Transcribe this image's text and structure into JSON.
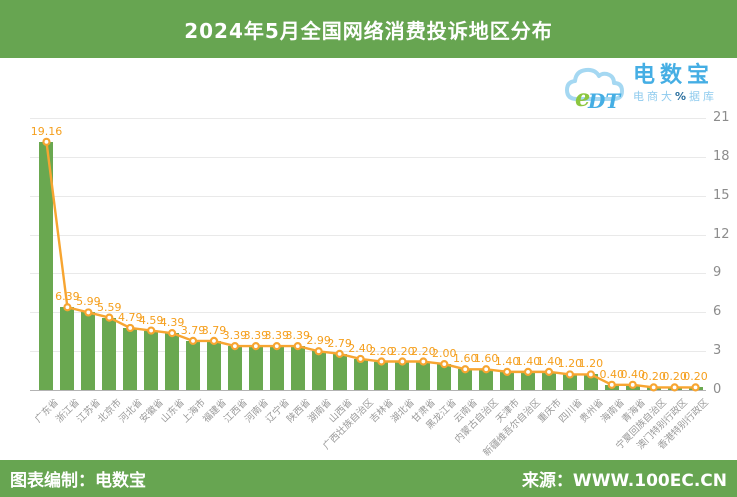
{
  "title": "2024年5月全国网络消费投诉地区分布",
  "logo": {
    "brand": "电数宝",
    "brand_latin_e": "e",
    "brand_latin_dt": "DT",
    "tagline_pre": "电商大",
    "tagline_pct": "%",
    "tagline_post": "据库"
  },
  "footer": {
    "left": "图表编制：电数宝",
    "right": "来源：WWW.100EC.CN"
  },
  "colors": {
    "header_green": "#67a551",
    "bar_green": "#6aa850",
    "line_orange": "#f7a531",
    "label_orange": "#f59f1d",
    "ytick_text": "#8c8c8c",
    "xlabel_text": "#999999",
    "grid": "#e9e9e9",
    "axis_line": "#b3b3b3",
    "logo_blue": "#45aee4",
    "logo_light_blue": "#a5d8f2",
    "logo_green": "#8cc63f"
  },
  "chart_data": {
    "type": "bar",
    "overlay": "line",
    "unit": "%",
    "title": "2024年5月全国网络消费投诉地区分布",
    "categories": [
      "广东省",
      "浙江省",
      "江苏省",
      "北京市",
      "河北省",
      "安徽省",
      "山东省",
      "上海市",
      "福建省",
      "江西省",
      "河南省",
      "辽宁省",
      "陕西省",
      "湖南省",
      "山西省",
      "广西壮族自治区",
      "吉林省",
      "湖北省",
      "甘肃省",
      "黑龙江省",
      "云南省",
      "内蒙古自治区",
      "天津市",
      "新疆维吾尔自治区",
      "重庆市",
      "四川省",
      "贵州省",
      "海南省",
      "青海省",
      "宁夏回族自治区",
      "澳门特别行政区",
      "香港特别行政区"
    ],
    "values": [
      19.16,
      6.39,
      5.99,
      5.59,
      4.79,
      4.59,
      4.39,
      3.79,
      3.79,
      3.39,
      3.39,
      3.39,
      3.39,
      2.99,
      2.79,
      2.4,
      2.2,
      2.2,
      2.2,
      2.0,
      1.6,
      1.6,
      1.4,
      1.4,
      1.4,
      1.2,
      1.2,
      0.4,
      0.4,
      0.2,
      0.2,
      0.2
    ],
    "labels": [
      "19.16",
      "6.39",
      "5.99",
      "5.59",
      "4.79",
      "4.59",
      "4.39",
      "3.79",
      "3.79",
      "3.39",
      "3.39",
      "3.39",
      "3.39",
      "2.99",
      "2.79",
      "2.40",
      "2.20",
      "2.20",
      "2.20",
      "2.00",
      "1.60",
      "1.60",
      "1.40",
      "1.40",
      "1.40",
      "1.20",
      "1.20",
      "0.40",
      "0.40",
      "0.20",
      "0.20",
      "0.20"
    ],
    "ylim": [
      0,
      21
    ],
    "yticks": [
      0,
      3,
      6,
      9,
      12,
      15,
      18,
      21
    ],
    "y_axis_position": "right",
    "grid": true,
    "xlabel": "",
    "ylabel": "%"
  }
}
